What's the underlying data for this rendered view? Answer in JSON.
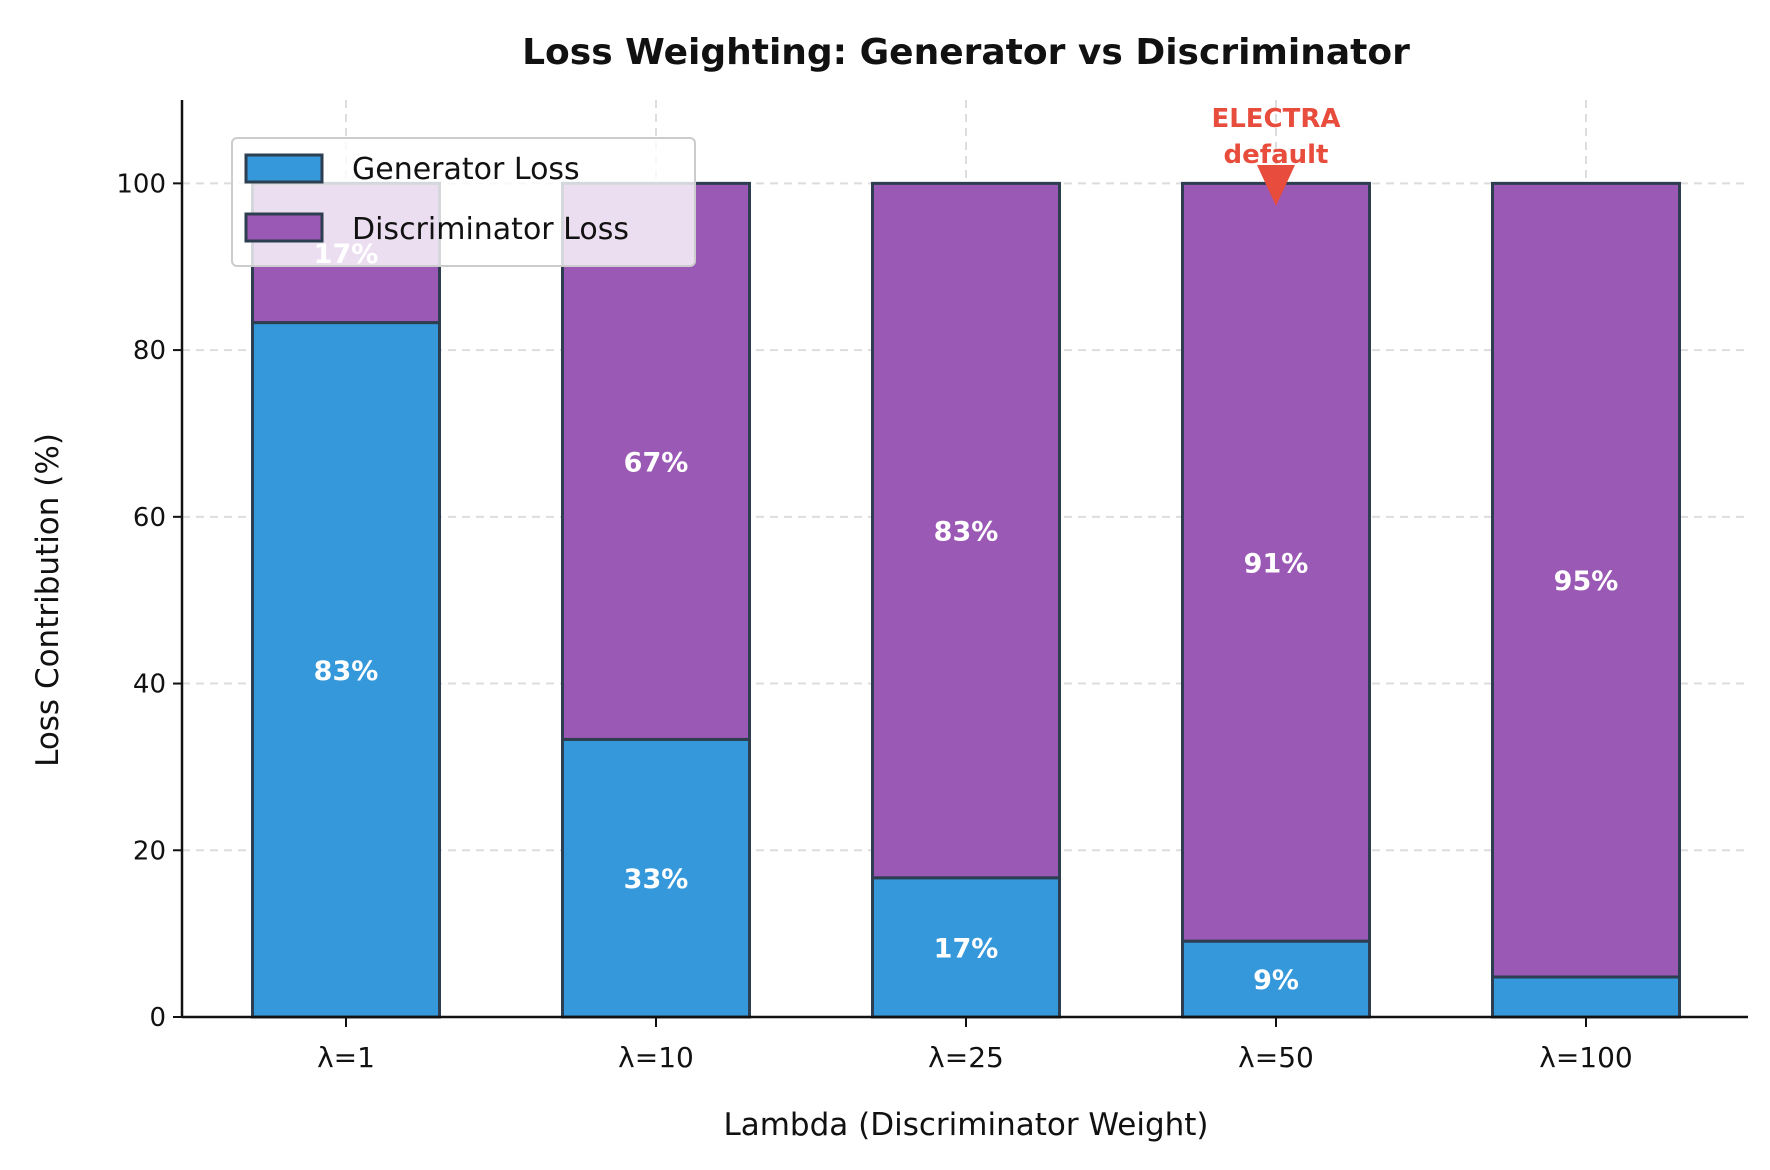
{
  "chart_data": {
    "type": "bar",
    "stacked": true,
    "title": "Loss Weighting: Generator vs Discriminator",
    "xlabel": "Lambda (Discriminator Weight)",
    "ylabel": "Loss Contribution (%)",
    "categories": [
      "λ=1",
      "λ=10",
      "λ=25",
      "λ=50",
      "λ=100"
    ],
    "ylim": [
      0,
      110
    ],
    "yticks": [
      0,
      20,
      40,
      60,
      80,
      100
    ],
    "grid": true,
    "legend_position": "top-left",
    "series": [
      {
        "name": "Generator Loss",
        "color": "#3498db",
        "values": [
          83.3,
          33.3,
          16.7,
          9.1,
          4.8
        ],
        "labels": [
          "83%",
          "33%",
          "17%",
          "9%",
          ""
        ]
      },
      {
        "name": "Discriminator Loss",
        "color": "#9b59b6",
        "values": [
          16.7,
          66.7,
          83.3,
          90.9,
          95.2
        ],
        "labels": [
          "17%",
          "67%",
          "83%",
          "91%",
          "95%"
        ]
      }
    ],
    "annotation": {
      "text_line1": "ELECTRA",
      "text_line2": "default",
      "category_index": 3,
      "color": "#e74c3c"
    }
  }
}
